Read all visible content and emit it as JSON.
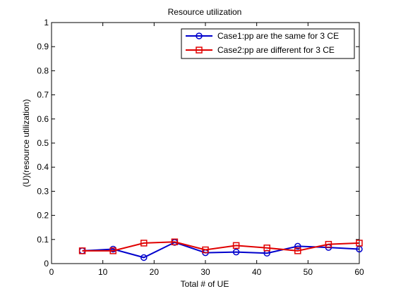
{
  "chart_data": {
    "type": "line",
    "title": "Resource utilization",
    "xlabel": "Total # of UE",
    "ylabel": "(U)(resource utilization)",
    "xlim": [
      0,
      60
    ],
    "ylim": [
      0,
      1
    ],
    "xticks": [
      0,
      10,
      20,
      30,
      40,
      50,
      60
    ],
    "yticks": [
      0,
      0.1,
      0.2,
      0.3,
      0.4,
      0.5,
      0.6,
      0.7,
      0.8,
      0.9,
      1
    ],
    "xtick_labels": [
      "0",
      "10",
      "20",
      "30",
      "40",
      "50",
      "60"
    ],
    "ytick_labels": [
      "0",
      "0.1",
      "0.2",
      "0.3",
      "0.4",
      "0.5",
      "0.6",
      "0.7",
      "0.8",
      "0.9",
      "1"
    ],
    "grid": false,
    "legend_position": "top-right",
    "series": [
      {
        "name": "Case1:pp are the same for 3 CE",
        "color": "#0000cc",
        "marker": "circle",
        "x": [
          6,
          12,
          18,
          24,
          30,
          36,
          42,
          48,
          54,
          60
        ],
        "y": [
          0.053,
          0.06,
          0.025,
          0.088,
          0.045,
          0.048,
          0.043,
          0.072,
          0.067,
          0.06
        ]
      },
      {
        "name": "Case2:pp are different for 3 CE",
        "color": "#e00000",
        "marker": "square",
        "x": [
          6,
          12,
          18,
          24,
          30,
          36,
          42,
          48,
          54,
          60
        ],
        "y": [
          0.053,
          0.053,
          0.085,
          0.09,
          0.057,
          0.075,
          0.065,
          0.053,
          0.08,
          0.085
        ]
      }
    ]
  }
}
